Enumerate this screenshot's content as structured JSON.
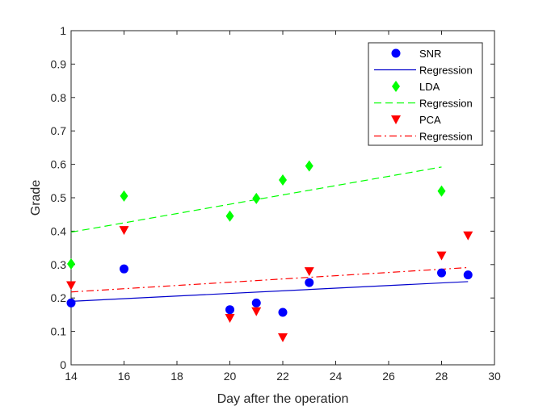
{
  "chart_data": {
    "type": "scatter",
    "xlabel": "Day after the operation",
    "ylabel": "Grade",
    "xlim": [
      14,
      30
    ],
    "ylim": [
      0,
      1
    ],
    "xticks": [
      14,
      16,
      18,
      20,
      22,
      24,
      26,
      28,
      30
    ],
    "yticks": [
      0,
      0.1,
      0.2,
      0.3,
      0.4,
      0.5,
      0.6,
      0.7,
      0.8,
      0.9,
      1
    ],
    "xtick_labels": [
      "14",
      "16",
      "18",
      "20",
      "22",
      "24",
      "26",
      "28",
      "30"
    ],
    "ytick_labels": [
      "0",
      "0.1",
      "0.2",
      "0.3",
      "0.4",
      "0.5",
      "0.6",
      "0.7",
      "0.8",
      "0.9",
      "1"
    ],
    "grid": false,
    "legend_position": "top-right",
    "series": [
      {
        "name": "SNR",
        "marker": "circle",
        "color": "#0000ff",
        "points": [
          [
            14,
            0.185
          ],
          [
            16,
            0.287
          ],
          [
            20,
            0.165
          ],
          [
            21,
            0.185
          ],
          [
            22,
            0.157
          ],
          [
            23,
            0.246
          ],
          [
            28,
            0.275
          ],
          [
            29,
            0.269
          ]
        ],
        "regression": {
          "name": "Regression",
          "style": "solid",
          "x": [
            14,
            29
          ],
          "y": [
            0.19,
            0.249
          ]
        }
      },
      {
        "name": "LDA",
        "marker": "diamond",
        "color": "#00ff00",
        "points": [
          [
            14,
            0.302
          ],
          [
            16,
            0.505
          ],
          [
            20,
            0.445
          ],
          [
            21,
            0.498
          ],
          [
            22,
            0.553
          ],
          [
            23,
            0.595
          ],
          [
            28,
            0.52
          ]
        ],
        "regression": {
          "name": "Regression",
          "style": "dashed",
          "x": [
            14,
            28
          ],
          "y": [
            0.397,
            0.592
          ]
        }
      },
      {
        "name": "PCA",
        "marker": "triangle-down",
        "color": "#ff0000",
        "points": [
          [
            14,
            0.238
          ],
          [
            16,
            0.403
          ],
          [
            20,
            0.14
          ],
          [
            21,
            0.16
          ],
          [
            22,
            0.082
          ],
          [
            23,
            0.28
          ],
          [
            28,
            0.327
          ],
          [
            29,
            0.387
          ]
        ],
        "regression": {
          "name": "Regression",
          "style": "dashdot",
          "x": [
            14,
            29
          ],
          "y": [
            0.218,
            0.291
          ]
        }
      }
    ]
  }
}
